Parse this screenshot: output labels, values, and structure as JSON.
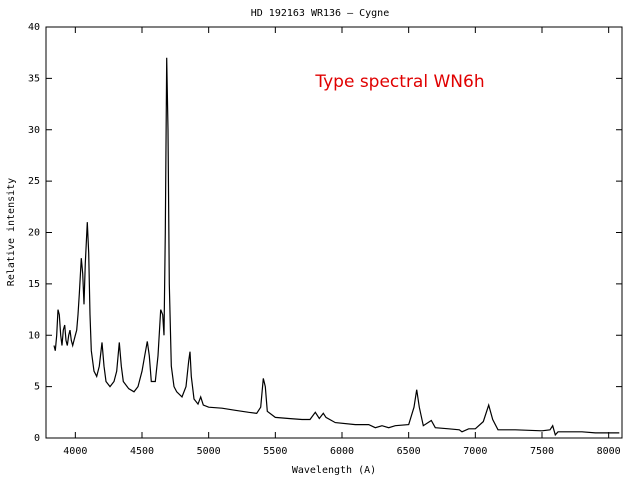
{
  "chart_data": {
    "type": "line",
    "title": "HD 192163 WR136 – Cygne",
    "annotation": "Type spectral WN6h",
    "annotation_color": "#e00000",
    "x_label": "Wavelength (A)",
    "y_label": "Relative intensity",
    "xlim": [
      3780,
      8100
    ],
    "ylim": [
      0,
      40
    ],
    "xticks": [
      4000,
      4500,
      5000,
      5500,
      6000,
      6500,
      7000,
      7500,
      8000
    ],
    "yticks": [
      0,
      5,
      10,
      15,
      20,
      25,
      30,
      35,
      40
    ],
    "x": [
      3840,
      3850,
      3860,
      3870,
      3880,
      3890,
      3900,
      3910,
      3920,
      3930,
      3940,
      3950,
      3960,
      3970,
      3980,
      3990,
      4000,
      4010,
      4020,
      4030,
      4045,
      4055,
      4065,
      4075,
      4090,
      4100,
      4110,
      4120,
      4140,
      4160,
      4180,
      4200,
      4215,
      4230,
      4260,
      4290,
      4310,
      4330,
      4345,
      4360,
      4400,
      4440,
      4470,
      4500,
      4520,
      4540,
      4555,
      4570,
      4600,
      4620,
      4640,
      4655,
      4665,
      4675,
      4685,
      4695,
      4705,
      4720,
      4740,
      4760,
      4800,
      4830,
      4850,
      4860,
      4870,
      4890,
      4920,
      4940,
      4960,
      5000,
      5100,
      5200,
      5300,
      5360,
      5390,
      5410,
      5425,
      5440,
      5500,
      5600,
      5700,
      5760,
      5800,
      5830,
      5860,
      5880,
      5950,
      6100,
      6200,
      6250,
      6300,
      6350,
      6400,
      6500,
      6540,
      6560,
      6580,
      6610,
      6670,
      6700,
      6800,
      6880,
      6900,
      6950,
      7000,
      7060,
      7100,
      7130,
      7170,
      7300,
      7500,
      7560,
      7580,
      7600,
      7620,
      7700,
      7800,
      7900,
      8000,
      8080
    ],
    "series": [
      {
        "name": "spectrum",
        "color": "#000000",
        "values": [
          9,
          8.5,
          10,
          12.5,
          12,
          10,
          9,
          10.5,
          11,
          9.5,
          9,
          10,
          10.5,
          9.5,
          9,
          9.5,
          10,
          10.5,
          12,
          14,
          17.5,
          16,
          13,
          17,
          21,
          18,
          12,
          8.5,
          6.5,
          6,
          7,
          9.3,
          7,
          5.5,
          5,
          5.5,
          6.5,
          9.3,
          7,
          5.5,
          4.8,
          4.5,
          5,
          6.5,
          8,
          9.4,
          8,
          5.5,
          5.5,
          8,
          12.5,
          12,
          10,
          20,
          37,
          30,
          15,
          7,
          5,
          4.5,
          4,
          5,
          7.5,
          8.4,
          6,
          3.8,
          3.3,
          4,
          3.2,
          3,
          2.9,
          2.7,
          2.5,
          2.4,
          3,
          5.8,
          5,
          2.6,
          2,
          1.9,
          1.8,
          1.8,
          2.5,
          1.9,
          2.4,
          2,
          1.5,
          1.3,
          1.3,
          1,
          1.2,
          1,
          1.2,
          1.3,
          3,
          4.7,
          3,
          1.2,
          1.7,
          1,
          0.9,
          0.8,
          0.6,
          0.9,
          0.9,
          1.6,
          3.2,
          1.8,
          0.8,
          0.8,
          0.7,
          0.8,
          1.2,
          0.3,
          0.6,
          0.6,
          0.6,
          0.5,
          0.5,
          0.5
        ]
      }
    ]
  }
}
